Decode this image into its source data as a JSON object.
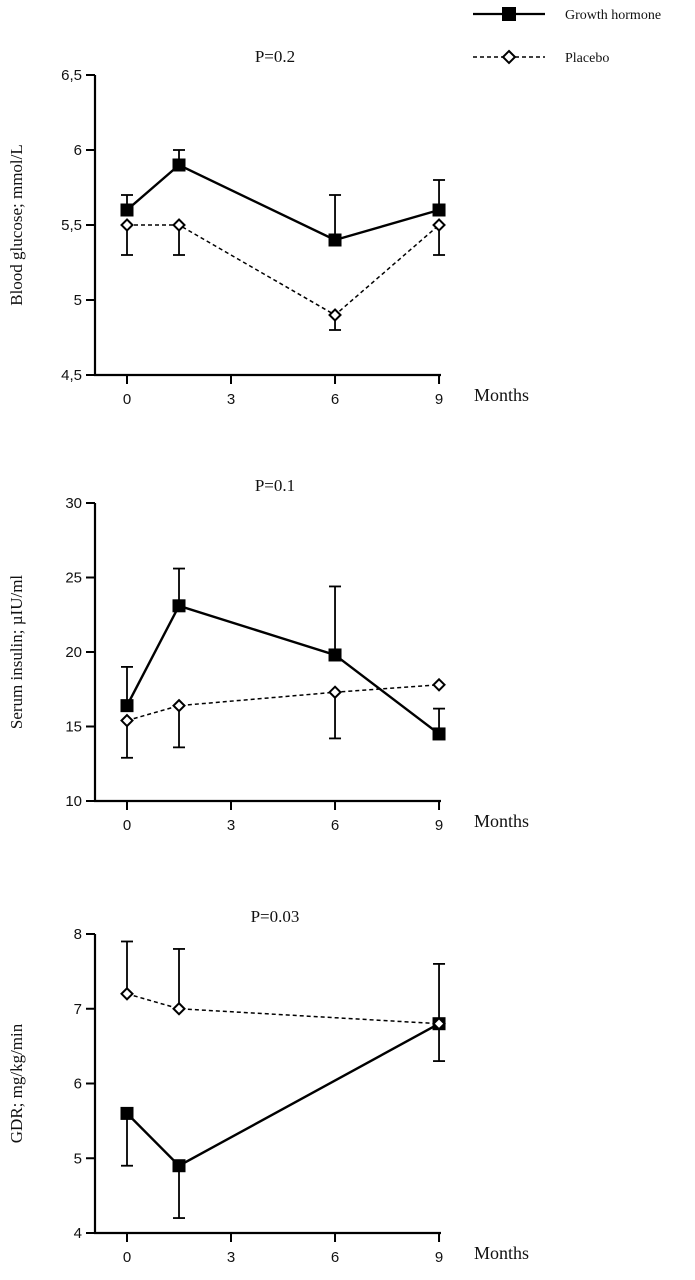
{
  "legend": {
    "entries": [
      {
        "label": "Growth hormone",
        "style": "solid",
        "marker": "square"
      },
      {
        "label": "Placebo",
        "style": "dashed",
        "marker": "diamond"
      }
    ]
  },
  "chart_data": [
    {
      "type": "line",
      "title": "P=0.2",
      "ylabel": "Blood glucose; mmol/L",
      "xlabel": "Months",
      "xlim": [
        -1.1,
        9.3
      ],
      "ylim": [
        4.5,
        6.5
      ],
      "x_ticks": [
        0,
        3,
        6,
        9
      ],
      "x_tick_labels": [
        "0",
        "3",
        "6",
        "9"
      ],
      "y_ticks": [
        4.5,
        5,
        5.5,
        6,
        6.5
      ],
      "y_tick_labels": [
        "4,5",
        "5",
        "5,5",
        "6",
        "6,5"
      ],
      "grid": false,
      "series": [
        {
          "name": "Growth hormone",
          "x": [
            0,
            1.5,
            6,
            9
          ],
          "y": [
            5.6,
            5.9,
            5.4,
            5.6
          ],
          "err_upper": [
            5.7,
            6.0,
            5.7,
            5.8
          ]
        },
        {
          "name": "Placebo",
          "x": [
            0,
            1.5,
            6,
            9
          ],
          "y": [
            5.5,
            5.5,
            4.9,
            5.5
          ],
          "err_lower": [
            5.3,
            5.3,
            4.8,
            5.3
          ]
        }
      ]
    },
    {
      "type": "line",
      "title": "P=0.1",
      "ylabel": "Serum insulin; µIU/ml",
      "xlabel": "Months",
      "xlim": [
        -1.1,
        9.3
      ],
      "ylim": [
        10,
        30
      ],
      "x_ticks": [
        0,
        3,
        6,
        9
      ],
      "x_tick_labels": [
        "0",
        "3",
        "6",
        "9"
      ],
      "y_ticks": [
        10,
        15,
        20,
        25,
        30
      ],
      "y_tick_labels": [
        "10",
        "15",
        "20",
        "25",
        "30"
      ],
      "grid": false,
      "series": [
        {
          "name": "Growth hormone",
          "x": [
            0,
            1.5,
            6,
            9
          ],
          "y": [
            16.4,
            23.1,
            19.8,
            14.5
          ],
          "err_upper": [
            19.0,
            25.6,
            24.4,
            16.2
          ]
        },
        {
          "name": "Placebo",
          "x": [
            0,
            1.5,
            6,
            9
          ],
          "y": [
            15.4,
            16.4,
            17.3,
            17.8
          ],
          "err_lower": [
            12.9,
            13.6,
            14.2,
            null
          ]
        }
      ]
    },
    {
      "type": "line",
      "title": "P=0.03",
      "ylabel": "GDR; mg/kg/min",
      "xlabel": "Months",
      "xlim": [
        -1.1,
        9.3
      ],
      "ylim": [
        4,
        8
      ],
      "x_ticks": [
        0,
        3,
        6,
        9
      ],
      "x_tick_labels": [
        "0",
        "3",
        "6",
        "9"
      ],
      "y_ticks": [
        4,
        5,
        6,
        7,
        8
      ],
      "y_tick_labels": [
        "4",
        "5",
        "6",
        "7",
        "8"
      ],
      "grid": false,
      "series": [
        {
          "name": "Growth hormone",
          "x": [
            0,
            1.5,
            9
          ],
          "y": [
            5.6,
            4.9,
            6.8
          ],
          "err_lower": [
            4.9,
            4.2,
            6.3
          ]
        },
        {
          "name": "Placebo",
          "x": [
            0,
            1.5,
            9
          ],
          "y": [
            7.2,
            7.0,
            6.8
          ],
          "err_upper": [
            7.9,
            7.8,
            7.6
          ]
        }
      ]
    }
  ]
}
